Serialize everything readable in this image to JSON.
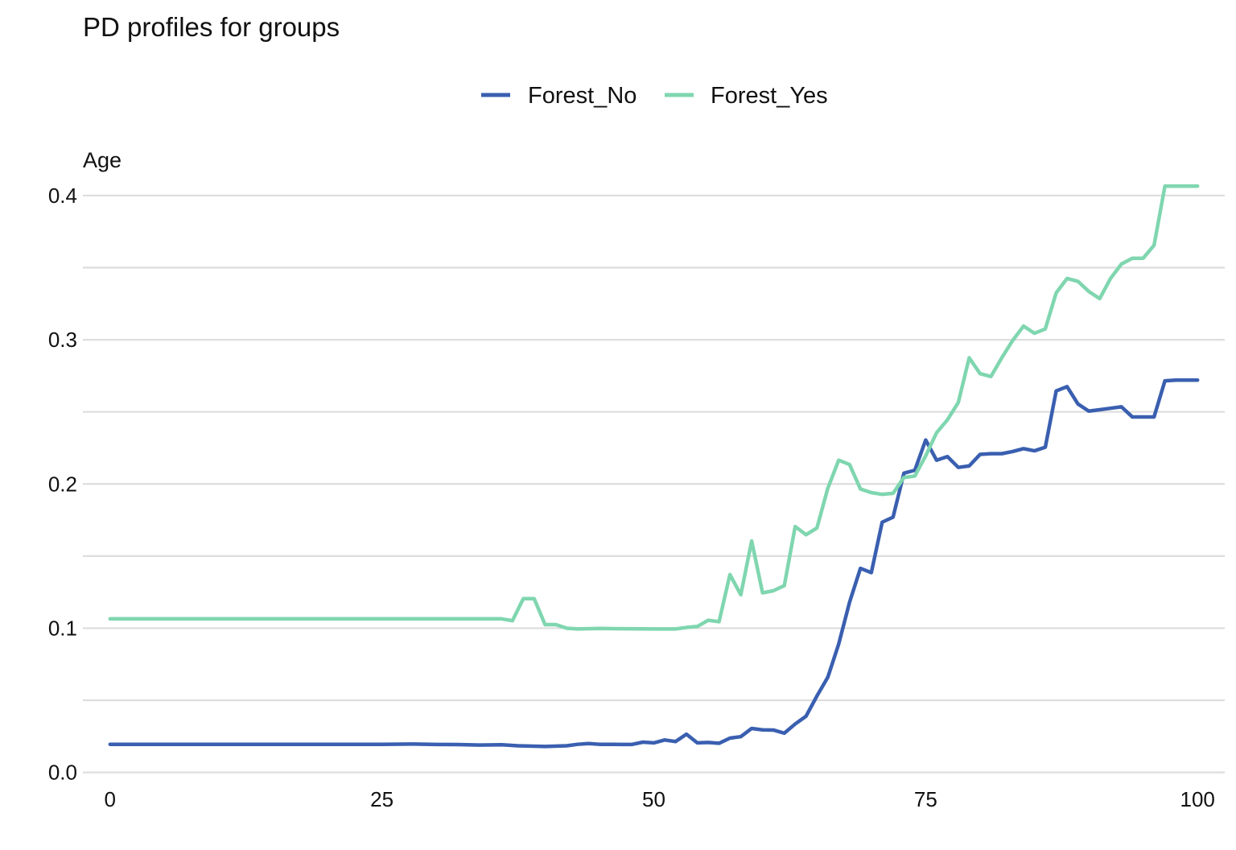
{
  "chart_data": {
    "type": "line",
    "title": "PD profiles for groups",
    "panel_label": "Age",
    "xlabel": "",
    "ylabel": "",
    "xlim": [
      -2.5,
      102.5
    ],
    "ylim": [
      -0.003,
      0.41
    ],
    "x_ticks": [
      0,
      25,
      50,
      75,
      100
    ],
    "y_ticks": [
      0.0,
      0.1,
      0.2,
      0.3,
      0.4
    ],
    "y_tick_labels": [
      "0.0",
      "0.1",
      "0.2",
      "0.3",
      "0.4"
    ],
    "y_minor_gridlines": [
      0.05,
      0.15,
      0.25,
      0.35
    ],
    "grid": "horizontal",
    "legend_position": "top",
    "series": [
      {
        "name": "Forest_No",
        "color": "#3a5fb0",
        "points": [
          [
            0,
            0.0195
          ],
          [
            5,
            0.0195
          ],
          [
            10,
            0.0195
          ],
          [
            15,
            0.0195
          ],
          [
            20,
            0.0195
          ],
          [
            25,
            0.0195
          ],
          [
            28,
            0.0197
          ],
          [
            30,
            0.0194
          ],
          [
            32,
            0.0193
          ],
          [
            34,
            0.019
          ],
          [
            36,
            0.0192
          ],
          [
            37.5,
            0.0185
          ],
          [
            40,
            0.018
          ],
          [
            42,
            0.0185
          ],
          [
            43,
            0.0195
          ],
          [
            44,
            0.02
          ],
          [
            45,
            0.0195
          ],
          [
            47,
            0.0194
          ],
          [
            48,
            0.0194
          ],
          [
            49,
            0.021
          ],
          [
            50,
            0.0205
          ],
          [
            51,
            0.0225
          ],
          [
            52,
            0.0214
          ],
          [
            53,
            0.0265
          ],
          [
            54,
            0.0205
          ],
          [
            55,
            0.0208
          ],
          [
            56,
            0.0202
          ],
          [
            57,
            0.0238
          ],
          [
            58,
            0.0248
          ],
          [
            59,
            0.0305
          ],
          [
            60,
            0.0295
          ],
          [
            61,
            0.0294
          ],
          [
            62,
            0.0272
          ],
          [
            63,
            0.0336
          ],
          [
            64,
            0.039
          ],
          [
            65,
            0.053
          ],
          [
            66,
            0.066
          ],
          [
            67,
            0.089
          ],
          [
            68,
            0.118
          ],
          [
            69,
            0.1415
          ],
          [
            70,
            0.1385
          ],
          [
            71,
            0.1735
          ],
          [
            72,
            0.177
          ],
          [
            73,
            0.2075
          ],
          [
            74,
            0.2095
          ],
          [
            75,
            0.2305
          ],
          [
            76,
            0.2165
          ],
          [
            77,
            0.219
          ],
          [
            78,
            0.2115
          ],
          [
            79,
            0.2125
          ],
          [
            80,
            0.2205
          ],
          [
            81,
            0.221
          ],
          [
            82,
            0.221
          ],
          [
            83,
            0.2225
          ],
          [
            84,
            0.2245
          ],
          [
            85,
            0.223
          ],
          [
            86,
            0.2255
          ],
          [
            87,
            0.2645
          ],
          [
            88,
            0.2675
          ],
          [
            89,
            0.2555
          ],
          [
            90,
            0.2505
          ],
          [
            91,
            0.2515
          ],
          [
            92,
            0.2525
          ],
          [
            93,
            0.2535
          ],
          [
            94,
            0.2465
          ],
          [
            95,
            0.2465
          ],
          [
            96,
            0.2465
          ],
          [
            97,
            0.2715
          ],
          [
            98,
            0.272
          ],
          [
            99,
            0.272
          ],
          [
            100,
            0.272
          ]
        ]
      },
      {
        "name": "Forest_Yes",
        "color": "#7fd6af",
        "points": [
          [
            0,
            0.1065
          ],
          [
            10,
            0.1065
          ],
          [
            20,
            0.1065
          ],
          [
            30,
            0.1065
          ],
          [
            35,
            0.1065
          ],
          [
            36,
            0.1065
          ],
          [
            37,
            0.1052
          ],
          [
            38,
            0.1205
          ],
          [
            39,
            0.1205
          ],
          [
            40,
            0.1025
          ],
          [
            41,
            0.1025
          ],
          [
            42,
            0.1
          ],
          [
            43,
            0.0995
          ],
          [
            45,
            0.0998
          ],
          [
            50,
            0.0995
          ],
          [
            51,
            0.0995
          ],
          [
            52,
            0.0995
          ],
          [
            53,
            0.1005
          ],
          [
            54,
            0.1012
          ],
          [
            55,
            0.1055
          ],
          [
            56,
            0.1045
          ],
          [
            57,
            0.1372
          ],
          [
            58,
            0.1232
          ],
          [
            59,
            0.1605
          ],
          [
            60,
            0.1245
          ],
          [
            61,
            0.126
          ],
          [
            62,
            0.1295
          ],
          [
            63,
            0.1705
          ],
          [
            64,
            0.1648
          ],
          [
            65,
            0.1695
          ],
          [
            66,
            0.197
          ],
          [
            67,
            0.2165
          ],
          [
            68,
            0.2135
          ],
          [
            69,
            0.1965
          ],
          [
            70,
            0.194
          ],
          [
            71,
            0.1928
          ],
          [
            72,
            0.1935
          ],
          [
            73,
            0.2045
          ],
          [
            74,
            0.2055
          ],
          [
            75,
            0.2195
          ],
          [
            76,
            0.2355
          ],
          [
            77,
            0.2445
          ],
          [
            78,
            0.2565
          ],
          [
            79,
            0.2875
          ],
          [
            80,
            0.2765
          ],
          [
            81,
            0.2745
          ],
          [
            82,
            0.2875
          ],
          [
            83,
            0.2995
          ],
          [
            84,
            0.3095
          ],
          [
            85,
            0.3045
          ],
          [
            86,
            0.3075
          ],
          [
            87,
            0.3325
          ],
          [
            88,
            0.3425
          ],
          [
            89,
            0.3405
          ],
          [
            90,
            0.3335
          ],
          [
            91,
            0.3285
          ],
          [
            92,
            0.3425
          ],
          [
            93,
            0.3525
          ],
          [
            94,
            0.3565
          ],
          [
            95,
            0.3565
          ],
          [
            96,
            0.3655
          ],
          [
            97,
            0.4065
          ],
          [
            98,
            0.4065
          ],
          [
            99,
            0.4065
          ],
          [
            100,
            0.4065
          ]
        ]
      }
    ]
  }
}
